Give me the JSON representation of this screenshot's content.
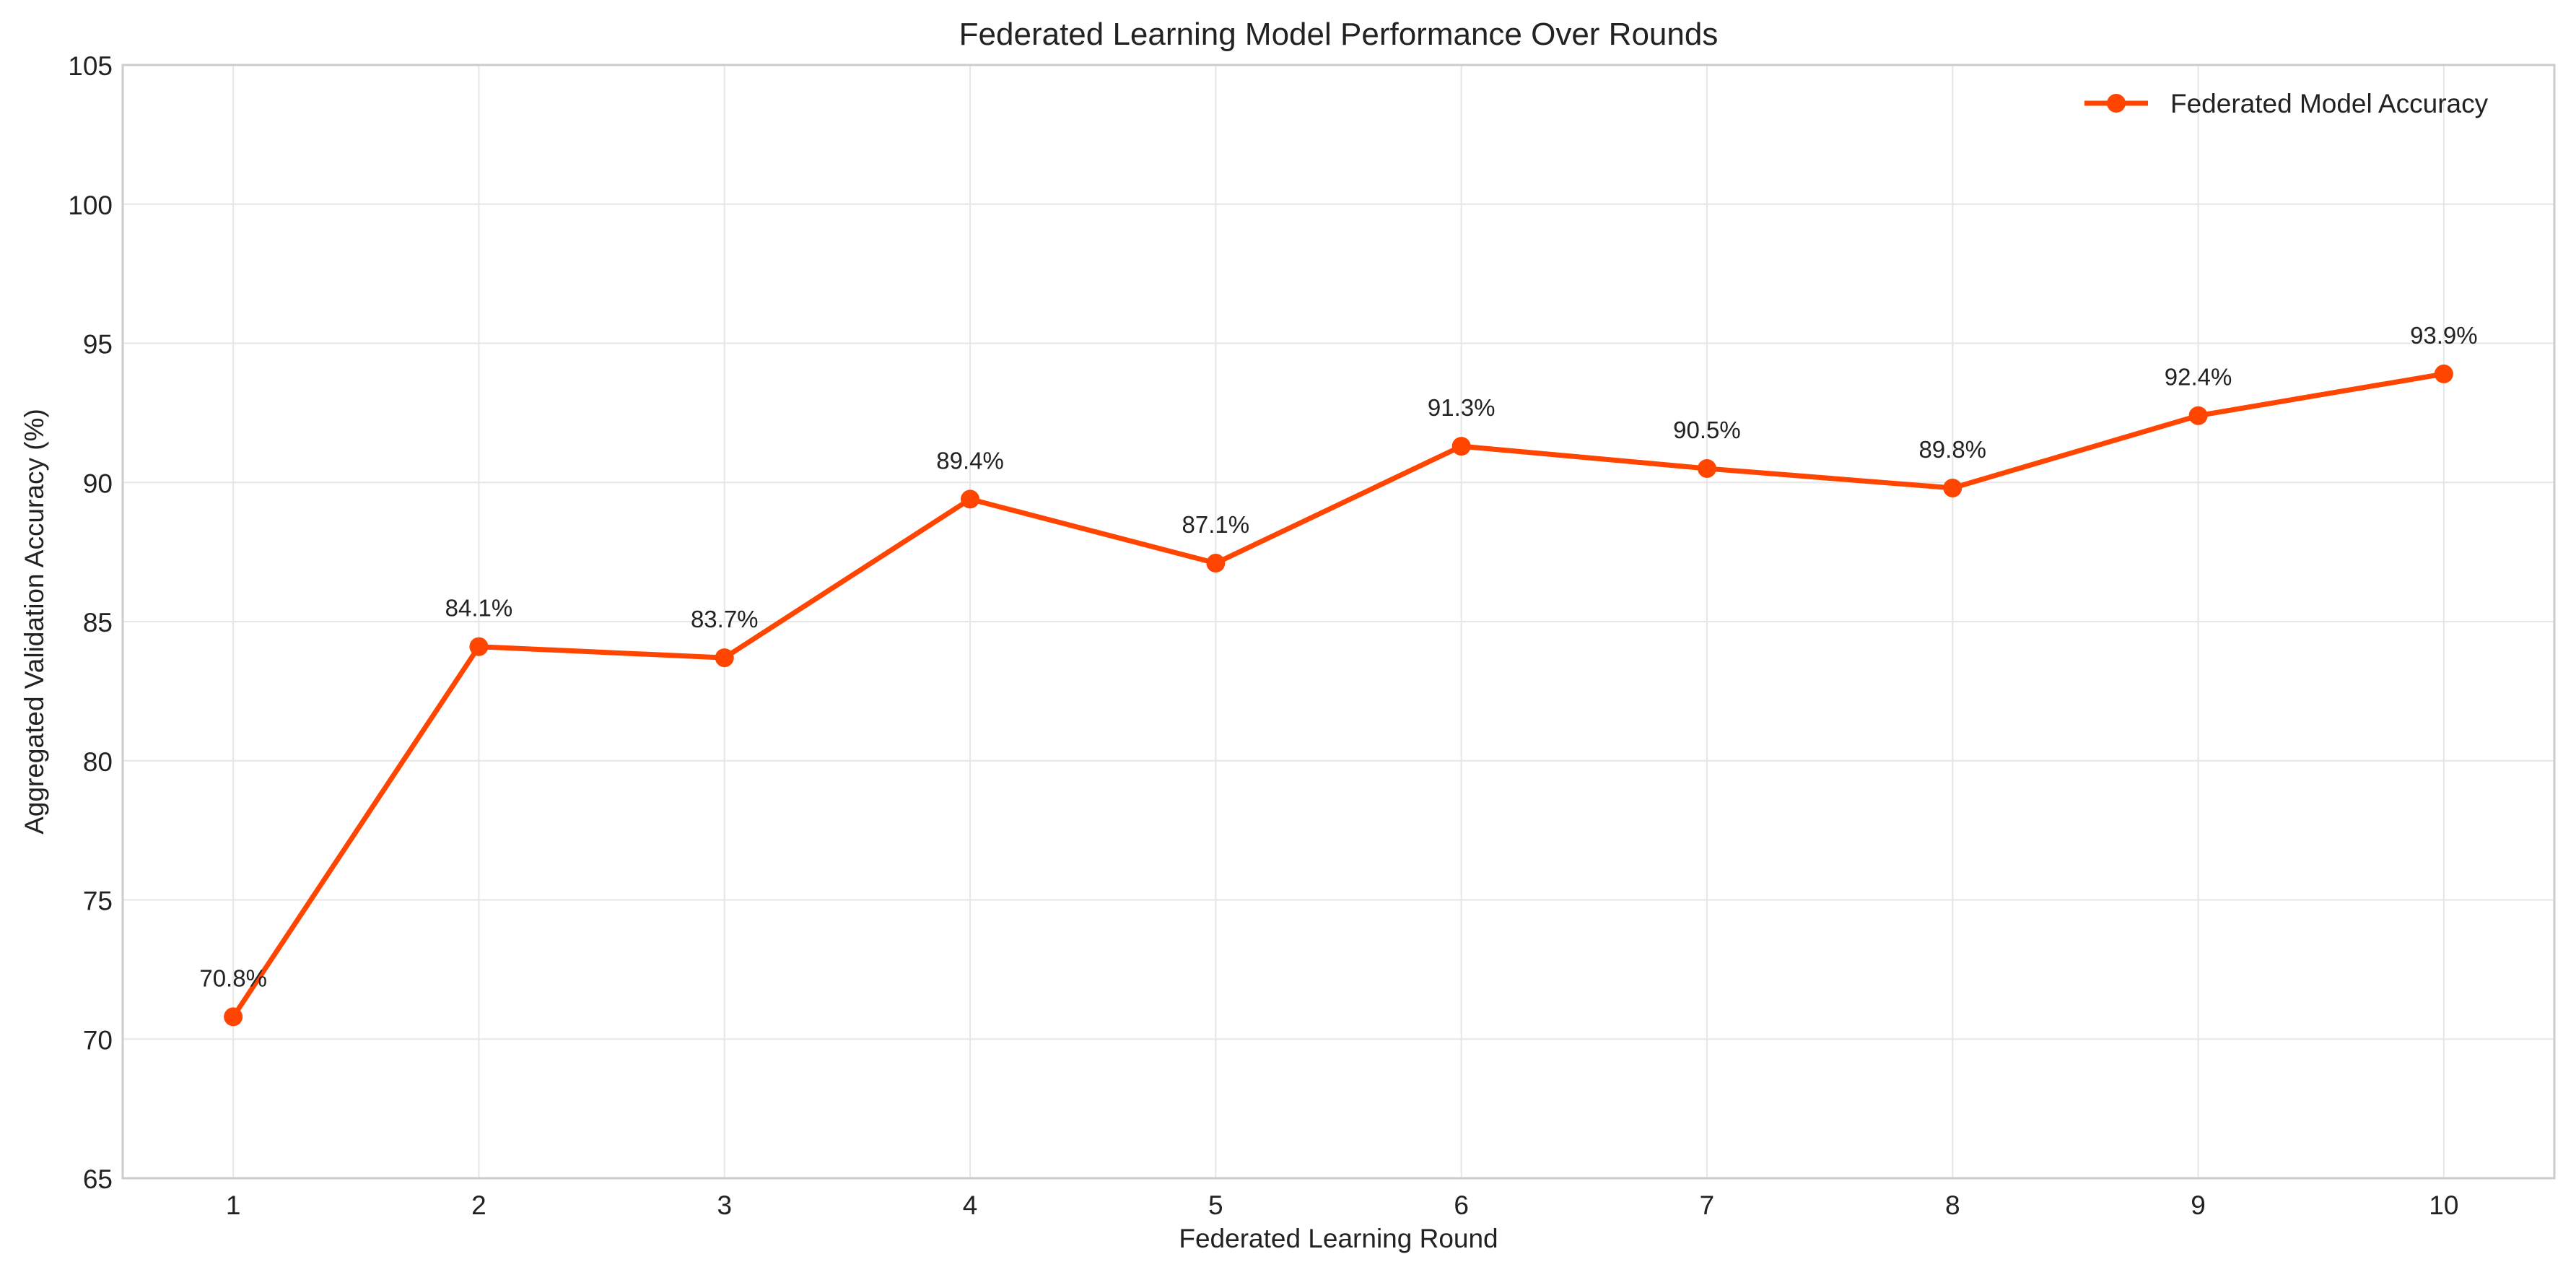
{
  "chart_data": {
    "type": "line",
    "title": "Federated Learning Model Performance Over Rounds",
    "xlabel": "Federated Learning Round",
    "ylabel": "Aggregated Validation Accuracy (%)",
    "x": [
      1,
      2,
      3,
      4,
      5,
      6,
      7,
      8,
      9,
      10
    ],
    "xticks": [
      "1",
      "2",
      "3",
      "4",
      "5",
      "6",
      "7",
      "8",
      "9",
      "10"
    ],
    "xlim": [
      0.55,
      10.45
    ],
    "ylim": [
      65,
      105
    ],
    "yticks": [
      65,
      70,
      75,
      80,
      85,
      90,
      95,
      100,
      105
    ],
    "grid": true,
    "legend_position": "top-right",
    "series": [
      {
        "name": "Federated Model Accuracy",
        "color": "#FF4500",
        "marker": "circle",
        "values": [
          70.8,
          84.1,
          83.7,
          89.4,
          87.1,
          91.3,
          90.5,
          89.8,
          92.4,
          93.9
        ],
        "data_labels": [
          "70.8%",
          "84.1%",
          "83.7%",
          "89.4%",
          "87.1%",
          "91.3%",
          "90.5%",
          "89.8%",
          "92.4%",
          "93.9%"
        ]
      }
    ]
  }
}
